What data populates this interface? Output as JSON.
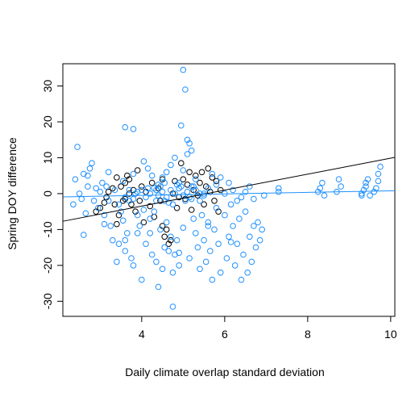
{
  "chart_data": {
    "type": "scatter",
    "title": "",
    "xlabel": "Daily climate overlap standard deviation",
    "ylabel": "Spring DOY difference",
    "xlim": [
      2.1,
      10.1
    ],
    "ylim": [
      -34.2,
      36.2
    ],
    "x_ticks": [
      "4",
      "6",
      "8",
      "10"
    ],
    "y_ticks": [
      "-30",
      "-20",
      "-10",
      "0",
      "10",
      "20",
      "30"
    ],
    "grid": false,
    "legend": "none",
    "series": [
      {
        "color": "#000000",
        "marker": "open-circle",
        "points": [
          [
            2.9,
            -5.0
          ],
          [
            3.0,
            -4.0
          ],
          [
            3.1,
            -2.5
          ],
          [
            3.15,
            -1.0
          ],
          [
            3.2,
            0.5
          ],
          [
            3.3,
            1.5
          ],
          [
            3.35,
            -3.0
          ],
          [
            3.4,
            4.5
          ],
          [
            3.45,
            -6.0
          ],
          [
            3.5,
            2.0
          ],
          [
            3.55,
            -2.0
          ],
          [
            3.6,
            3.0
          ],
          [
            3.6,
            -1.5
          ],
          [
            3.65,
            5.0
          ],
          [
            3.7,
            0.0
          ],
          [
            3.75,
            -3.0
          ],
          [
            3.8,
            1.0
          ],
          [
            3.85,
            -5.0
          ],
          [
            3.9,
            6.5
          ],
          [
            3.95,
            -2.0
          ],
          [
            4.0,
            2.0
          ],
          [
            4.05,
            -8.0
          ],
          [
            4.1,
            0.5
          ],
          [
            4.2,
            -3.5
          ],
          [
            4.25,
            3.0
          ],
          [
            4.3,
            -6.5
          ],
          [
            4.4,
            1.5
          ],
          [
            4.45,
            -2.0
          ],
          [
            4.5,
            4.0
          ],
          [
            4.5,
            -9.0
          ],
          [
            4.55,
            -12.0
          ],
          [
            4.6,
            -10.0
          ],
          [
            4.65,
            -14.0
          ],
          [
            4.7,
            -13.0
          ],
          [
            4.75,
            0.0
          ],
          [
            4.8,
            3.5
          ],
          [
            4.85,
            -4.0
          ],
          [
            4.9,
            -1.0
          ],
          [
            4.95,
            8.5
          ],
          [
            5.0,
            4.0
          ],
          [
            5.05,
            -1.5
          ],
          [
            5.1,
            2.5
          ],
          [
            5.15,
            6.0
          ],
          [
            5.2,
            -4.5
          ],
          [
            5.25,
            1.0
          ],
          [
            5.3,
            5.0
          ],
          [
            5.35,
            -0.5
          ],
          [
            5.4,
            3.0
          ],
          [
            5.45,
            6.0
          ],
          [
            5.5,
            -3.0
          ],
          [
            5.55,
            2.0
          ],
          [
            5.6,
            7.0
          ],
          [
            5.65,
            0.5
          ],
          [
            5.7,
            4.5
          ],
          [
            5.75,
            -2.0
          ],
          [
            5.8,
            3.5
          ],
          [
            5.85,
            -5.0
          ],
          [
            5.9,
            1.0
          ],
          [
            3.4,
            -8.5
          ],
          [
            3.7,
            4.0
          ]
        ]
      },
      {
        "color": "#1E90FF",
        "marker": "open-circle",
        "points": [
          [
            2.35,
            -3.0
          ],
          [
            2.4,
            4.0
          ],
          [
            2.45,
            13.0
          ],
          [
            2.5,
            0.0
          ],
          [
            2.55,
            -1.5
          ],
          [
            2.6,
            5.5
          ],
          [
            2.6,
            -11.5
          ],
          [
            2.65,
            -5.5
          ],
          [
            2.7,
            2.0
          ],
          [
            2.7,
            5.0
          ],
          [
            2.75,
            7.0
          ],
          [
            2.8,
            8.5
          ],
          [
            2.85,
            -2.0
          ],
          [
            2.9,
            1.5
          ],
          [
            2.95,
            -4.0
          ],
          [
            3.0,
            0.5
          ],
          [
            3.05,
            3.0
          ],
          [
            3.1,
            -6.0
          ],
          [
            3.15,
            2.0
          ],
          [
            3.2,
            -2.0
          ],
          [
            3.25,
            -9.0
          ],
          [
            3.3,
            -13.0
          ],
          [
            3.35,
            1.0
          ],
          [
            3.4,
            -19.0
          ],
          [
            3.45,
            -3.0
          ],
          [
            3.5,
            -5.0
          ],
          [
            3.55,
            -7.5
          ],
          [
            3.55,
            3.5
          ],
          [
            3.6,
            -16.0
          ],
          [
            3.6,
            18.5
          ],
          [
            3.65,
            -11.0
          ],
          [
            3.7,
            -2.0
          ],
          [
            3.75,
            -18.0
          ],
          [
            3.8,
            -20.0
          ],
          [
            3.8,
            18.0
          ],
          [
            3.85,
            0.0
          ],
          [
            3.9,
            -11.0
          ],
          [
            3.95,
            -9.0
          ],
          [
            4.0,
            -24.0
          ],
          [
            4.05,
            -4.5
          ],
          [
            4.1,
            -14.0
          ],
          [
            4.15,
            1.5
          ],
          [
            4.2,
            -7.0
          ],
          [
            4.25,
            -17.0
          ],
          [
            4.3,
            -5.0
          ],
          [
            4.35,
            -19.0
          ],
          [
            4.4,
            -26.0
          ],
          [
            4.4,
            2.5
          ],
          [
            4.45,
            -10.0
          ],
          [
            4.5,
            -21.0
          ],
          [
            4.55,
            -2.0
          ],
          [
            4.6,
            -8.0
          ],
          [
            4.65,
            -16.0
          ],
          [
            4.7,
            -12.0
          ],
          [
            4.75,
            -22.0
          ],
          [
            4.8,
            -17.0
          ],
          [
            4.85,
            -13.0
          ],
          [
            4.9,
            -20.0
          ],
          [
            4.95,
            19.0
          ],
          [
            5.0,
            34.5
          ],
          [
            5.0,
            -9.5
          ],
          [
            5.05,
            29.0
          ],
          [
            5.1,
            15.0
          ],
          [
            5.15,
            14.0
          ],
          [
            5.2,
            12.0
          ],
          [
            5.25,
            -7.0
          ],
          [
            5.3,
            -11.0
          ],
          [
            5.35,
            -15.0
          ],
          [
            5.4,
            -21.0
          ],
          [
            5.45,
            -6.0
          ],
          [
            5.5,
            -13.0
          ],
          [
            5.55,
            -19.0
          ],
          [
            5.6,
            -8.0
          ],
          [
            5.65,
            -16.0
          ],
          [
            5.7,
            -24.0
          ],
          [
            5.75,
            -10.0
          ],
          [
            5.8,
            -4.0
          ],
          [
            5.85,
            -14.0
          ],
          [
            5.9,
            -22.0
          ],
          [
            6.0,
            -6.0
          ],
          [
            6.05,
            -18.0
          ],
          [
            6.1,
            -12.0
          ],
          [
            6.15,
            -3.0
          ],
          [
            6.2,
            -9.0
          ],
          [
            6.25,
            -20.0
          ],
          [
            6.3,
            -14.0
          ],
          [
            6.35,
            -7.0
          ],
          [
            6.4,
            -24.0
          ],
          [
            6.45,
            -17.0
          ],
          [
            6.5,
            -5.0
          ],
          [
            6.55,
            -22.0
          ],
          [
            6.6,
            -12.0
          ],
          [
            6.65,
            -19.0
          ],
          [
            6.7,
            -9.0
          ],
          [
            6.75,
            -15.0
          ],
          [
            6.8,
            -8.0
          ],
          [
            6.85,
            -13.0
          ],
          [
            6.9,
            -10.0
          ],
          [
            6.95,
            -0.5
          ],
          [
            7.3,
            0.5
          ],
          [
            7.3,
            1.5
          ],
          [
            8.25,
            0.5
          ],
          [
            8.3,
            1.5
          ],
          [
            8.35,
            3.0
          ],
          [
            8.4,
            -0.5
          ],
          [
            8.7,
            0.5
          ],
          [
            8.75,
            4.0
          ],
          [
            8.8,
            2.0
          ],
          [
            9.3,
            0.0
          ],
          [
            9.35,
            1.0
          ],
          [
            9.4,
            2.0
          ],
          [
            9.4,
            3.0
          ],
          [
            9.45,
            4.0
          ],
          [
            9.5,
            -0.5
          ],
          [
            9.6,
            0.5
          ],
          [
            9.65,
            1.5
          ],
          [
            9.7,
            3.5
          ],
          [
            9.7,
            5.5
          ],
          [
            9.75,
            7.5
          ],
          [
            9.3,
            -0.5
          ],
          [
            3.2,
            6.0
          ],
          [
            3.6,
            -13.0
          ],
          [
            3.8,
            5.5
          ],
          [
            4.05,
            9.0
          ],
          [
            4.15,
            7.0
          ],
          [
            4.25,
            5.0
          ],
          [
            4.35,
            1.0
          ],
          [
            4.5,
            4.5
          ],
          [
            4.6,
            6.0
          ],
          [
            4.7,
            8.0
          ],
          [
            4.8,
            10.0
          ],
          [
            4.9,
            3.0
          ],
          [
            5.0,
            6.5
          ],
          [
            5.1,
            11.0
          ],
          [
            5.2,
            2.0
          ],
          [
            5.3,
            4.0
          ],
          [
            5.4,
            -2.0
          ],
          [
            5.5,
            0.0
          ],
          [
            5.6,
            1.5
          ],
          [
            5.7,
            5.5
          ],
          [
            5.8,
            2.5
          ],
          [
            5.9,
            4.5
          ],
          [
            6.0,
            0.0
          ],
          [
            6.1,
            3.0
          ],
          [
            6.2,
            1.0
          ],
          [
            6.3,
            -2.0
          ],
          [
            6.4,
            -1.0
          ],
          [
            6.5,
            0.5
          ],
          [
            6.6,
            2.0
          ],
          [
            6.7,
            -1.5
          ],
          [
            4.75,
            -31.5
          ],
          [
            4.55,
            -15.0
          ],
          [
            4.9,
            -16.5
          ],
          [
            5.15,
            -18.0
          ],
          [
            4.2,
            -11.0
          ],
          [
            3.9,
            -6.0
          ],
          [
            3.45,
            -14.0
          ],
          [
            3.1,
            -8.5
          ],
          [
            5.6,
            -9.0
          ],
          [
            6.15,
            -13.5
          ]
        ]
      },
      {
        "color": "#1E90FF",
        "marker": "open-circle",
        "note": "dense cluster",
        "points": [
          [
            3.6,
            -1.0
          ],
          [
            3.7,
            1.0
          ],
          [
            3.8,
            -1.5
          ],
          [
            3.9,
            0.5
          ],
          [
            4.0,
            1.0
          ],
          [
            4.1,
            -1.0
          ],
          [
            4.2,
            0.0
          ],
          [
            4.3,
            1.5
          ],
          [
            4.4,
            -0.5
          ],
          [
            4.5,
            0.5
          ],
          [
            4.6,
            -1.0
          ],
          [
            4.7,
            1.0
          ],
          [
            4.8,
            0.0
          ],
          [
            4.9,
            1.5
          ],
          [
            5.0,
            -0.5
          ],
          [
            5.1,
            0.5
          ],
          [
            5.2,
            -1.5
          ],
          [
            5.3,
            1.0
          ],
          [
            5.4,
            0.0
          ],
          [
            5.5,
            -0.5
          ],
          [
            4.45,
            2.0
          ],
          [
            4.65,
            -2.5
          ],
          [
            4.85,
            2.5
          ],
          [
            5.05,
            -2.0
          ],
          [
            5.25,
            2.0
          ],
          [
            4.35,
            -2.0
          ],
          [
            4.55,
            3.0
          ],
          [
            4.75,
            -3.0
          ],
          [
            4.95,
            2.0
          ],
          [
            5.15,
            -1.0
          ]
        ]
      }
    ],
    "lines": [
      {
        "color": "#000000",
        "x": [
          2.1,
          10.1
        ],
        "y": [
          -7.7,
          10.1
        ]
      },
      {
        "color": "#1E90FF",
        "x": [
          2.1,
          10.1
        ],
        "y": [
          -0.9,
          0.8
        ]
      }
    ]
  }
}
